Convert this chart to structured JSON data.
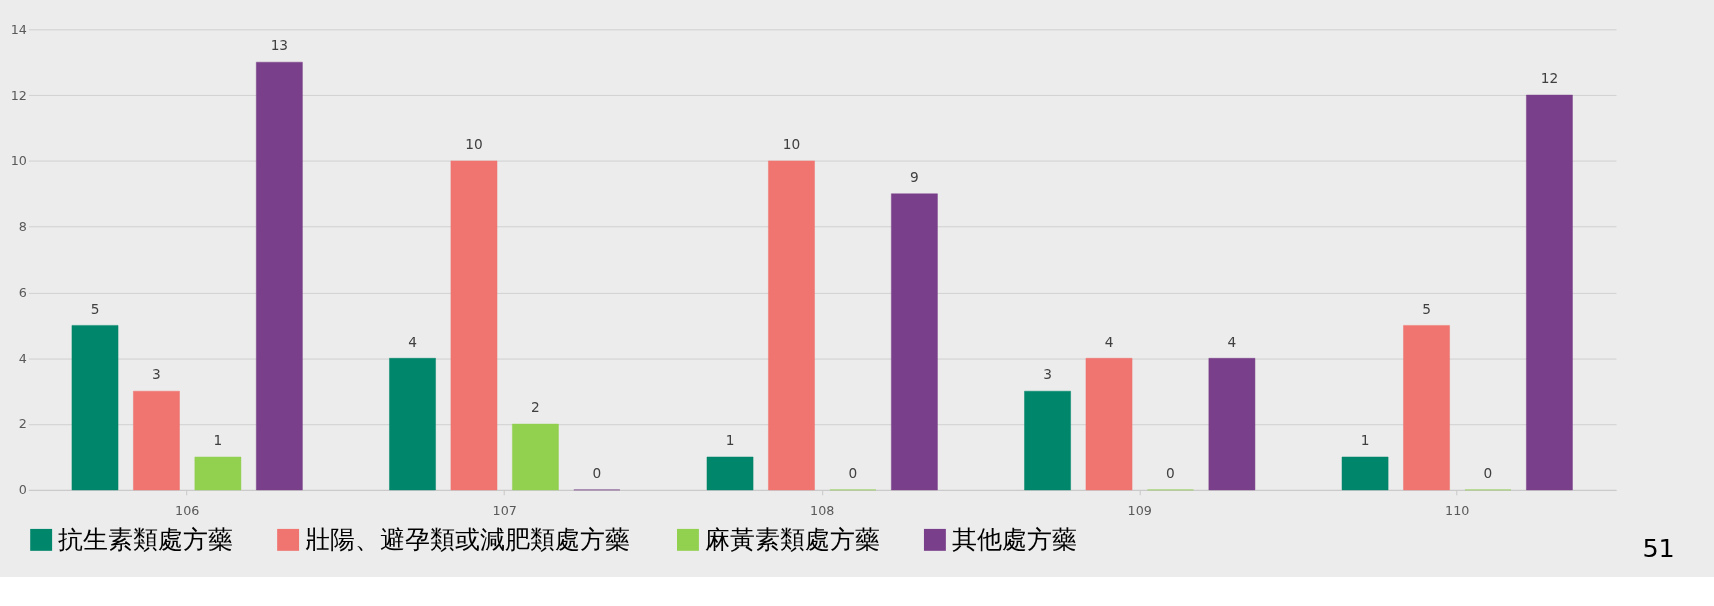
{
  "chart_data": {
    "type": "bar",
    "categories": [
      "106",
      "107",
      "108",
      "109",
      "110"
    ],
    "series": [
      {
        "name": "抗生素類處方藥",
        "color": "#00866a",
        "values": [
          5,
          4,
          1,
          3,
          1
        ]
      },
      {
        "name": "壯陽、避孕類或減肥類處方藥",
        "color": "#f07470",
        "values": [
          3,
          10,
          10,
          4,
          5
        ]
      },
      {
        "name": "麻黃素類處方藥",
        "color": "#92d050",
        "values": [
          1,
          2,
          0,
          0,
          0
        ]
      },
      {
        "name": "其他處方藥",
        "color": "#7a3f8a",
        "values": [
          13,
          0,
          9,
          4,
          12
        ]
      }
    ],
    "ylim": [
      0,
      14
    ],
    "yticks": [
      0,
      2,
      4,
      6,
      8,
      10,
      12,
      14
    ],
    "grid": "y",
    "legend": "bottom",
    "data_labels": true,
    "annotations": [
      "51"
    ]
  }
}
